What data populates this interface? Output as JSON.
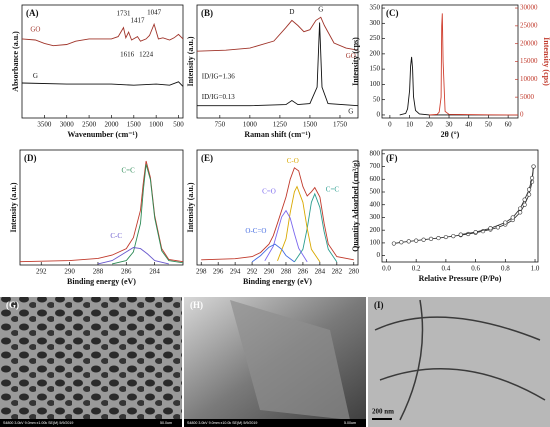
{
  "chart_data": [
    {
      "type": "line",
      "label": "(A)",
      "xlabel": "Wavenumber (cm⁻¹)",
      "ylabel": "Absorbance (a.u.)",
      "xlim": [
        4000,
        400
      ],
      "ylim": [
        0,
        10
      ],
      "xticks": [
        3500,
        3000,
        2500,
        2000,
        1500,
        1000,
        500
      ],
      "annotations": [
        "1731",
        "1616",
        "1417",
        "1224",
        "1047"
      ],
      "series": [
        {
          "name": "GO",
          "color": "#a0342a",
          "x": [
            4000,
            3700,
            3500,
            3300,
            3000,
            2800,
            2500,
            2200,
            2000,
            1850,
            1731,
            1680,
            1616,
            1550,
            1417,
            1350,
            1224,
            1150,
            1047,
            950,
            850,
            700,
            600,
            500,
            400
          ],
          "values": [
            7.0,
            6.9,
            6.6,
            6.4,
            6.5,
            6.8,
            7.0,
            7.0,
            7.0,
            7.2,
            8.0,
            7.1,
            7.6,
            6.9,
            7.2,
            6.8,
            7.0,
            7.3,
            8.3,
            7.0,
            7.1,
            6.9,
            7.1,
            7.4,
            7.0
          ]
        },
        {
          "name": "G",
          "color": "#111111",
          "x": [
            4000,
            3000,
            2000,
            1500,
            1000,
            700,
            500,
            400
          ],
          "values": [
            3.1,
            3.0,
            3.0,
            2.9,
            3.0,
            2.9,
            3.2,
            2.8
          ]
        }
      ]
    },
    {
      "type": "line",
      "label": "(B)",
      "xlabel": "Raman shift (cm⁻¹)",
      "ylabel": "Intensity (a.u.)",
      "xlim": [
        560,
        1900
      ],
      "ylim": [
        0,
        11
      ],
      "xticks": [
        750,
        1000,
        1250,
        1500,
        1750
      ],
      "annotations": [
        "D",
        "G",
        "ID/IG=1.36",
        "ID/IG=0.13"
      ],
      "series": [
        {
          "name": "GO",
          "color": "#a0342a",
          "x": [
            560,
            800,
            1000,
            1200,
            1300,
            1350,
            1400,
            1450,
            1500,
            1550,
            1590,
            1620,
            1700,
            1800,
            1900
          ],
          "values": [
            6.5,
            6.6,
            6.8,
            7.5,
            8.8,
            9.5,
            9.0,
            8.4,
            8.6,
            9.5,
            9.8,
            9.0,
            7.3,
            6.8,
            6.6
          ]
        },
        {
          "name": "G",
          "color": "#111111",
          "x": [
            560,
            1000,
            1300,
            1350,
            1400,
            1500,
            1560,
            1580,
            1600,
            1650,
            1900
          ],
          "values": [
            1.2,
            1.2,
            1.3,
            1.7,
            1.3,
            1.4,
            3.0,
            9.3,
            3.0,
            1.4,
            1.2
          ]
        }
      ]
    },
    {
      "type": "line",
      "label": "(C)",
      "xlabel": "2θ (°)",
      "ylabel": "Intensity (cps)",
      "y2label": "Intensity (cps)",
      "xlim": [
        -4,
        65
      ],
      "ylim": [
        -10,
        360
      ],
      "y2lim": [
        -850,
        30850
      ],
      "xticks": [
        0,
        10,
        20,
        30,
        40,
        50,
        60
      ],
      "yticks": [
        0,
        50,
        100,
        150,
        200,
        250,
        300,
        350
      ],
      "y2ticks": [
        0,
        5000,
        10000,
        15000,
        20000,
        25000,
        30000
      ],
      "series": [
        {
          "color": "#111111",
          "x": [
            5,
            8,
            9,
            10,
            10.5,
            11,
            11.5,
            12,
            13,
            15,
            20,
            30,
            40,
            50,
            60,
            65
          ],
          "values": [
            0,
            5,
            20,
            80,
            160,
            190,
            150,
            60,
            15,
            3,
            0,
            0,
            0,
            0,
            0,
            0
          ]
        },
        {
          "color": "#d04030",
          "axis": "y2",
          "x": [
            20,
            24,
            25,
            26,
            26.3,
            26.6,
            27,
            28,
            30,
            40,
            50,
            60,
            65
          ],
          "values": [
            0,
            200,
            800,
            5000,
            25000,
            28500,
            15000,
            1000,
            200,
            100,
            50,
            30,
            20
          ]
        }
      ]
    },
    {
      "type": "line",
      "label": "(D)",
      "xlabel": "Binding energy (eV)",
      "ylabel": "Intensity (a.u.)",
      "xlim": [
        293.5,
        282
      ],
      "ylim": [
        0,
        10.5
      ],
      "xticks": [
        292,
        290,
        288,
        286,
        284
      ],
      "series": [
        {
          "color": "#c0392b",
          "x": [
            293.5,
            290,
            288,
            287,
            286,
            285.5,
            285,
            284.8,
            284.6,
            284.3,
            284,
            283.5,
            283,
            282
          ],
          "values": [
            0.3,
            0.4,
            0.6,
            0.9,
            1.5,
            2.5,
            5,
            7.5,
            9.5,
            8.0,
            4.5,
            1.5,
            0.5,
            0.3
          ]
        },
        {
          "name": "C=C",
          "color": "#2e8b57",
          "x": [
            287,
            286,
            285.5,
            285,
            284.8,
            284.6,
            284.3,
            284,
            283.5,
            283,
            282
          ],
          "values": [
            0.1,
            0.4,
            1.2,
            3.8,
            6.8,
            9.2,
            7.8,
            4.3,
            1.3,
            0.4,
            0.2
          ]
        },
        {
          "name": "C-C",
          "color": "#6a5acd",
          "x": [
            288,
            287,
            286,
            285.5,
            285,
            284.5,
            284,
            283
          ],
          "values": [
            0.1,
            0.4,
            1.2,
            1.6,
            1.5,
            1.0,
            0.4,
            0.1
          ]
        }
      ]
    },
    {
      "type": "line",
      "label": "(E)",
      "xlabel": "Binding energy (eV)",
      "ylabel": "Intensity (a.u.)",
      "xlim": [
        298.5,
        279.5
      ],
      "ylim": [
        0,
        11
      ],
      "xticks": [
        298,
        296,
        294,
        292,
        290,
        288,
        286,
        284,
        282,
        280
      ],
      "series": [
        {
          "color": "#c0392b",
          "x": [
            298,
            294,
            292,
            291,
            290,
            289.5,
            289,
            288,
            287.5,
            287,
            286.5,
            286,
            285.5,
            285,
            284.6,
            284,
            283.5,
            283,
            282,
            280
          ],
          "values": [
            0.5,
            0.6,
            0.8,
            1.2,
            2.0,
            2.8,
            4.0,
            6.5,
            8.2,
            9.3,
            9.0,
            7.5,
            6.6,
            7.0,
            7.4,
            6.5,
            4.0,
            2.0,
            0.8,
            0.5
          ]
        },
        {
          "name": "C=C",
          "color": "#2a9d8f",
          "x": [
            287,
            286,
            285.5,
            285,
            284.6,
            284,
            283.5,
            283,
            282
          ],
          "values": [
            0.3,
            1.5,
            3.5,
            6,
            6.8,
            5.5,
            3.2,
            1.5,
            0.3
          ]
        },
        {
          "name": "C-O",
          "color": "#d9a800",
          "x": [
            289,
            288,
            287.5,
            287,
            286.7,
            286,
            285.5,
            285,
            284
          ],
          "values": [
            0.4,
            2.5,
            5.0,
            7.0,
            7.5,
            6.0,
            3.5,
            1.5,
            0.3
          ]
        },
        {
          "name": "C=O",
          "color": "#7b68ee",
          "x": [
            290.5,
            289.5,
            289,
            288.5,
            288,
            287.5,
            287,
            286.5,
            285.5
          ],
          "values": [
            0.4,
            1.8,
            3.2,
            4.6,
            5.2,
            4.5,
            3.0,
            1.6,
            0.3
          ]
        },
        {
          "name": "O-C=O",
          "color": "#4169e1",
          "x": [
            292,
            291,
            290,
            289.3,
            288.5,
            288,
            287
          ],
          "values": [
            0.3,
            0.9,
            1.7,
            2.0,
            1.5,
            0.9,
            0.3
          ]
        }
      ]
    },
    {
      "type": "line",
      "label": "(F)",
      "xlabel": "Relative Pressure (P/Po)",
      "ylabel": "Quantity Adsorbed (cm³/g)",
      "xlim": [
        -0.03,
        1.02
      ],
      "ylim": [
        -50,
        830
      ],
      "marker": "circle",
      "xticks": [
        {
          "value": 0,
          "label": "0.0"
        },
        {
          "value": 0.2,
          "label": "0.2"
        },
        {
          "value": 0.4,
          "label": "0.4"
        },
        {
          "value": 0.6,
          "label": "0.6"
        },
        {
          "value": 0.8,
          "label": "0.8"
        },
        {
          "value": 1,
          "label": "1.0"
        }
      ],
      "yticks": [
        0,
        100,
        200,
        300,
        400,
        500,
        600,
        700,
        800
      ],
      "series": [
        {
          "color": "#333333",
          "x": [
            0.05,
            0.1,
            0.15,
            0.2,
            0.25,
            0.3,
            0.35,
            0.4,
            0.45,
            0.5,
            0.55,
            0.6,
            0.65,
            0.7,
            0.75,
            0.8,
            0.85,
            0.9,
            0.93,
            0.96,
            0.98,
            0.99
          ],
          "values": [
            95,
            105,
            112,
            118,
            125,
            132,
            138,
            146,
            153,
            161,
            170,
            180,
            192,
            205,
            222,
            245,
            280,
            340,
            400,
            480,
            580,
            700
          ]
        },
        {
          "color": "#333333",
          "x": [
            0.99,
            0.98,
            0.96,
            0.93,
            0.9,
            0.85,
            0.8,
            0.7,
            0.6,
            0.5
          ],
          "values": [
            700,
            610,
            520,
            440,
            370,
            300,
            260,
            215,
            185,
            165
          ]
        }
      ]
    }
  ],
  "images": [
    {
      "label": "(G)",
      "caption": "S4800 3.0kV 9.0mm x1.00k SE(M) 5/9/2019",
      "scale": "50.0um"
    },
    {
      "label": "(H)",
      "caption": "S4800 3.0kV 9.0mm x10.0k SE(M) 5/9/2019",
      "scale": "5.00um"
    },
    {
      "label": "(I)",
      "scale": "200 nm"
    }
  ]
}
